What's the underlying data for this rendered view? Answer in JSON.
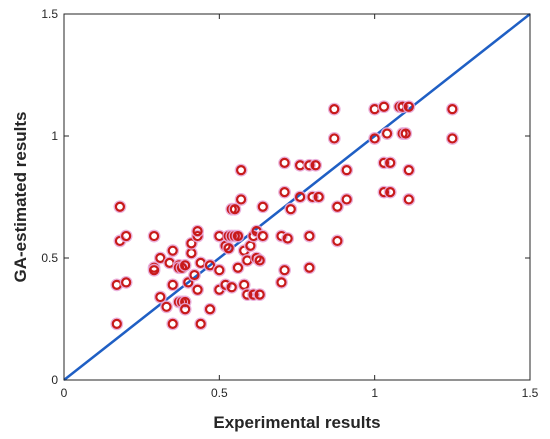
{
  "chart_data": {
    "type": "scatter",
    "title": "",
    "xlabel": "Experimental results",
    "ylabel": "GA-estimated results",
    "xlim": [
      0,
      1.5
    ],
    "ylim": [
      0,
      1.5
    ],
    "x_ticks": [
      "0",
      "0.5",
      "1",
      "1.5"
    ],
    "y_ticks": [
      "0",
      "0.5",
      "1",
      "1.5"
    ],
    "grid": false,
    "legend": "none",
    "colors": {
      "marker": "#c81a1a",
      "marker_halo": "#e8a8d8",
      "line": "#1f5fc4",
      "axes": "#262626"
    },
    "reference_line": {
      "x": [
        0,
        1.5
      ],
      "y": [
        0,
        1.5
      ]
    },
    "points": [
      [
        0.17,
        0.23
      ],
      [
        0.17,
        0.39
      ],
      [
        0.18,
        0.57
      ],
      [
        0.18,
        0.71
      ],
      [
        0.2,
        0.59
      ],
      [
        0.2,
        0.4
      ],
      [
        0.29,
        0.59
      ],
      [
        0.29,
        0.46
      ],
      [
        0.29,
        0.45
      ],
      [
        0.31,
        0.5
      ],
      [
        0.31,
        0.34
      ],
      [
        0.33,
        0.3
      ],
      [
        0.34,
        0.48
      ],
      [
        0.35,
        0.53
      ],
      [
        0.35,
        0.39
      ],
      [
        0.35,
        0.23
      ],
      [
        0.37,
        0.47
      ],
      [
        0.37,
        0.46
      ],
      [
        0.38,
        0.46
      ],
      [
        0.39,
        0.47
      ],
      [
        0.37,
        0.32
      ],
      [
        0.38,
        0.32
      ],
      [
        0.39,
        0.32
      ],
      [
        0.39,
        0.29
      ],
      [
        0.4,
        0.4
      ],
      [
        0.41,
        0.52
      ],
      [
        0.41,
        0.56
      ],
      [
        0.42,
        0.43
      ],
      [
        0.43,
        0.37
      ],
      [
        0.43,
        0.59
      ],
      [
        0.43,
        0.61
      ],
      [
        0.44,
        0.48
      ],
      [
        0.44,
        0.23
      ],
      [
        0.47,
        0.47
      ],
      [
        0.47,
        0.29
      ],
      [
        0.5,
        0.59
      ],
      [
        0.5,
        0.45
      ],
      [
        0.5,
        0.37
      ],
      [
        0.52,
        0.55
      ],
      [
        0.52,
        0.39
      ],
      [
        0.53,
        0.59
      ],
      [
        0.53,
        0.54
      ],
      [
        0.54,
        0.59
      ],
      [
        0.54,
        0.38
      ],
      [
        0.54,
        0.7
      ],
      [
        0.55,
        0.7
      ],
      [
        0.55,
        0.59
      ],
      [
        0.56,
        0.59
      ],
      [
        0.56,
        0.46
      ],
      [
        0.57,
        0.74
      ],
      [
        0.57,
        0.86
      ],
      [
        0.58,
        0.53
      ],
      [
        0.58,
        0.39
      ],
      [
        0.59,
        0.35
      ],
      [
        0.59,
        0.49
      ],
      [
        0.6,
        0.55
      ],
      [
        0.61,
        0.59
      ],
      [
        0.61,
        0.35
      ],
      [
        0.62,
        0.61
      ],
      [
        0.62,
        0.5
      ],
      [
        0.63,
        0.49
      ],
      [
        0.63,
        0.35
      ],
      [
        0.64,
        0.59
      ],
      [
        0.64,
        0.71
      ],
      [
        0.7,
        0.59
      ],
      [
        0.7,
        0.4
      ],
      [
        0.71,
        0.45
      ],
      [
        0.71,
        0.77
      ],
      [
        0.71,
        0.89
      ],
      [
        0.72,
        0.58
      ],
      [
        0.73,
        0.7
      ],
      [
        0.76,
        0.88
      ],
      [
        0.76,
        0.75
      ],
      [
        0.79,
        0.88
      ],
      [
        0.79,
        0.59
      ],
      [
        0.79,
        0.46
      ],
      [
        0.8,
        0.75
      ],
      [
        0.81,
        0.88
      ],
      [
        0.82,
        0.75
      ],
      [
        0.87,
        1.11
      ],
      [
        0.87,
        0.99
      ],
      [
        0.88,
        0.71
      ],
      [
        0.88,
        0.57
      ],
      [
        0.91,
        0.86
      ],
      [
        0.91,
        0.74
      ],
      [
        1.0,
        1.11
      ],
      [
        1.0,
        0.99
      ],
      [
        1.03,
        1.12
      ],
      [
        1.03,
        0.89
      ],
      [
        1.03,
        0.77
      ],
      [
        1.04,
        1.01
      ],
      [
        1.05,
        0.89
      ],
      [
        1.05,
        0.77
      ],
      [
        1.08,
        1.12
      ],
      [
        1.09,
        1.12
      ],
      [
        1.09,
        1.01
      ],
      [
        1.1,
        1.01
      ],
      [
        1.11,
        1.12
      ],
      [
        1.11,
        0.86
      ],
      [
        1.11,
        0.74
      ],
      [
        1.25,
        1.11
      ],
      [
        1.25,
        0.99
      ]
    ]
  }
}
